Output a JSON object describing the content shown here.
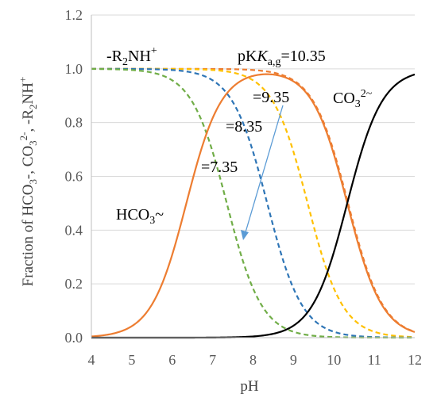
{
  "chart_data": {
    "type": "line",
    "xlabel": "pH",
    "ylabel": "Fraction of HCO3-, CO32-, -R2NH+",
    "xlim": [
      4,
      12
    ],
    "ylim": [
      0,
      1.2
    ],
    "x_ticks": [
      "4",
      "5",
      "6",
      "7",
      "8",
      "9",
      "10",
      "11",
      "12"
    ],
    "y_ticks": [
      "0.0",
      "0.2",
      "0.4",
      "0.6",
      "0.8",
      "1.0",
      "1.2"
    ],
    "grid": "horizontal",
    "pKa1": 6.35,
    "pKa2": 10.33,
    "series": [
      {
        "name": "HCO3-",
        "kind": "bicarbonate",
        "color": "#ED7D31",
        "dash": "solid"
      },
      {
        "name": "CO32-",
        "kind": "carbonate",
        "color": "#000000",
        "dash": "solid"
      },
      {
        "name": "-R2NH+",
        "kind": "amine",
        "pKa": 10.35,
        "color": "#ED7D31",
        "dash": "dashed"
      },
      {
        "name": "-R2NH+",
        "kind": "amine",
        "pKa": 9.35,
        "color": "#FFC000",
        "dash": "dashed"
      },
      {
        "name": "-R2NH+",
        "kind": "amine",
        "pKa": 8.35,
        "color": "#2E75B6",
        "dash": "dashed"
      },
      {
        "name": "-R2NH+",
        "kind": "amine",
        "pKa": 7.35,
        "color": "#70AD47",
        "dash": "dashed"
      }
    ],
    "annotations": {
      "amine_label": "-R2NH+",
      "pka_prefix": "pK",
      "pka_subscript": "a,g",
      "pka_values": [
        "=10.35",
        "=9.35",
        "=8.35",
        "=7.35"
      ],
      "bicarbonate_label": "HCO3-",
      "carbonate_label": "CO32-"
    },
    "arrow_color": "#5B9BD5"
  }
}
